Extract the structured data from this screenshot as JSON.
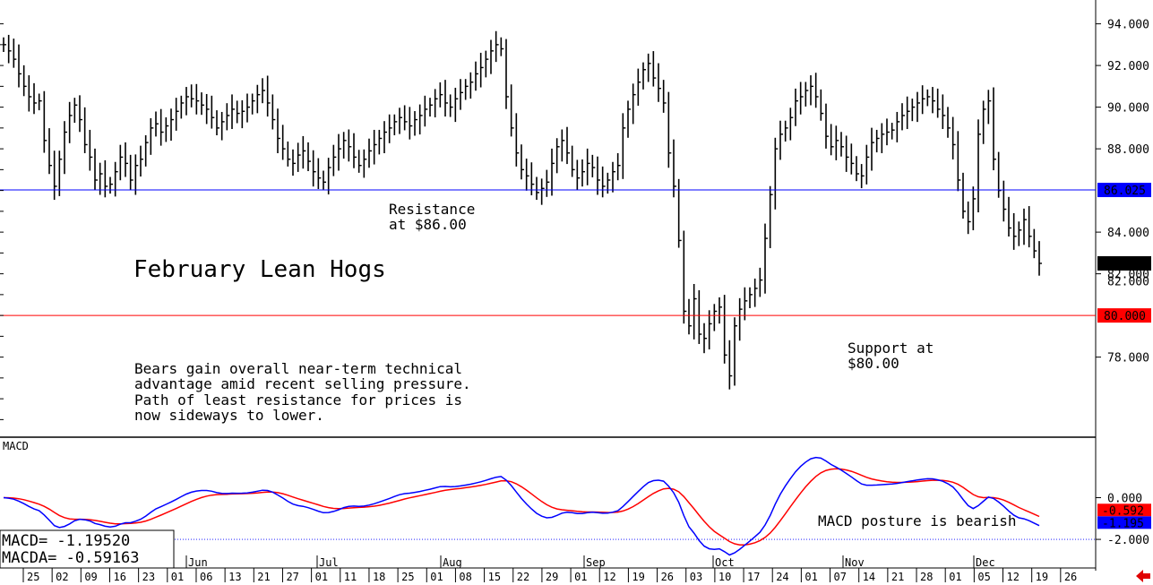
{
  "chart_data": {
    "type": "ohlc",
    "title": "February Lean Hogs",
    "commentary": [
      "Bears gain overall near-term technical",
      "advantage amid recent selling pressure.",
      "Path of least resistance for prices is",
      "now sideways to lower."
    ],
    "price_axis": {
      "ylim": [
        74.5,
        94.8
      ],
      "ticks": [
        "94.000",
        "92.000",
        "90.000",
        "88.000",
        "86.000",
        "84.000",
        "82.000",
        "80.000",
        "78.000"
      ]
    },
    "resistance": {
      "value": 86.025,
      "label_lines": [
        "Resistance",
        "at $86.00"
      ],
      "badge": "86.025",
      "color": "#0000ff"
    },
    "support": {
      "value": 80.0,
      "label_lines": [
        "Support at",
        "$80.00"
      ],
      "badge": "80.000",
      "color": "#ff0000"
    },
    "last_price": {
      "value": 82.5,
      "badge": "82.500"
    },
    "closes": [
      93.0,
      92.7,
      92.3,
      91.6,
      91.0,
      90.5,
      90.2,
      90.3,
      88.4,
      87.2,
      86.2,
      87.5,
      88.8,
      89.6,
      90.1,
      89.4,
      88.2,
      87.6,
      86.5,
      86.8,
      86.2,
      86.3,
      86.9,
      87.6,
      87.3,
      86.5,
      87.2,
      87.5,
      88.3,
      89.0,
      89.2,
      88.8,
      89.1,
      89.4,
      89.8,
      90.2,
      90.5,
      90.4,
      90.3,
      90.1,
      89.9,
      89.5,
      89.0,
      89.3,
      89.6,
      89.9,
      89.7,
      89.8,
      90.0,
      90.3,
      90.6,
      90.8,
      90.2,
      89.4,
      88.5,
      88.0,
      87.5,
      87.3,
      87.7,
      87.9,
      87.4,
      86.9,
      86.6,
      86.4,
      87.1,
      87.6,
      88.0,
      88.4,
      88.1,
      87.6,
      87.2,
      87.5,
      87.9,
      88.2,
      88.5,
      88.8,
      89.0,
      89.3,
      89.5,
      89.3,
      89.1,
      89.4,
      89.6,
      89.9,
      90.1,
      90.4,
      90.6,
      90.2,
      90.0,
      90.4,
      90.7,
      91.0,
      91.2,
      91.6,
      91.9,
      92.3,
      92.7,
      93.0,
      92.8,
      90.5,
      89.0,
      87.8,
      87.0,
      86.7,
      86.3,
      85.9,
      86.1,
      86.4,
      87.3,
      88.1,
      88.4,
      87.8,
      87.0,
      86.6,
      86.9,
      87.3,
      87.1,
      86.5,
      86.2,
      86.5,
      86.9,
      87.2,
      89.0,
      89.9,
      90.6,
      91.2,
      91.8,
      92.1,
      91.4,
      90.9,
      90.2,
      87.8,
      86.2,
      83.6,
      80.2,
      79.5,
      80.8,
      79.1,
      78.9,
      79.6,
      80.2,
      80.4,
      78.1,
      77.1,
      79.5,
      80.3,
      80.7,
      81.0,
      81.3,
      81.7,
      83.7,
      85.8,
      88.0,
      88.7,
      89.0,
      89.5,
      90.3,
      90.5,
      90.8,
      91.0,
      90.5,
      89.7,
      88.6,
      88.1,
      88.4,
      88.1,
      87.6,
      87.3,
      86.8,
      86.7,
      87.6,
      88.3,
      88.5,
      88.7,
      88.8,
      88.9,
      89.3,
      89.6,
      89.8,
      90.0,
      90.2,
      90.4,
      90.5,
      90.3,
      89.9,
      89.6,
      89.0,
      88.2,
      86.5,
      85.0,
      84.5,
      85.6,
      88.7,
      89.9,
      90.3,
      87.5,
      86.0,
      85.1,
      84.2,
      83.8,
      84.1,
      84.6,
      83.8,
      83.1,
      82.5
    ],
    "macd": {
      "label": "MACD",
      "ylim": [
        -3.2,
        2.6
      ],
      "ticks": [
        "0.000",
        "-2.000"
      ],
      "reference_line": -2.0,
      "macd_value": -1.1952,
      "macda_value": -0.59163,
      "readout_macd": "MACD=   -1.19520",
      "readout_macda": "MACDA=  -0.59163",
      "badge_macd": "-1.195",
      "badge_macda": "-0.592",
      "annotation": "MACD posture is bearish",
      "macd_color": "#0000ff",
      "signal_color": "#ff0000"
    },
    "months": [
      "Jun",
      "Jul",
      "Aug",
      "Sep",
      "Oct",
      "Nov",
      "Dec"
    ],
    "x_ticks": [
      "25",
      "02",
      "09",
      "16",
      "23",
      "01",
      "06",
      "13",
      "21",
      "27",
      "01",
      "11",
      "18",
      "25",
      "01",
      "08",
      "15",
      "22",
      "29",
      "01",
      "12",
      "19",
      "26",
      "03",
      "10",
      "17",
      "24",
      "01",
      "07",
      "14",
      "21",
      "28",
      "01",
      "05",
      "12",
      "19",
      "26"
    ]
  }
}
